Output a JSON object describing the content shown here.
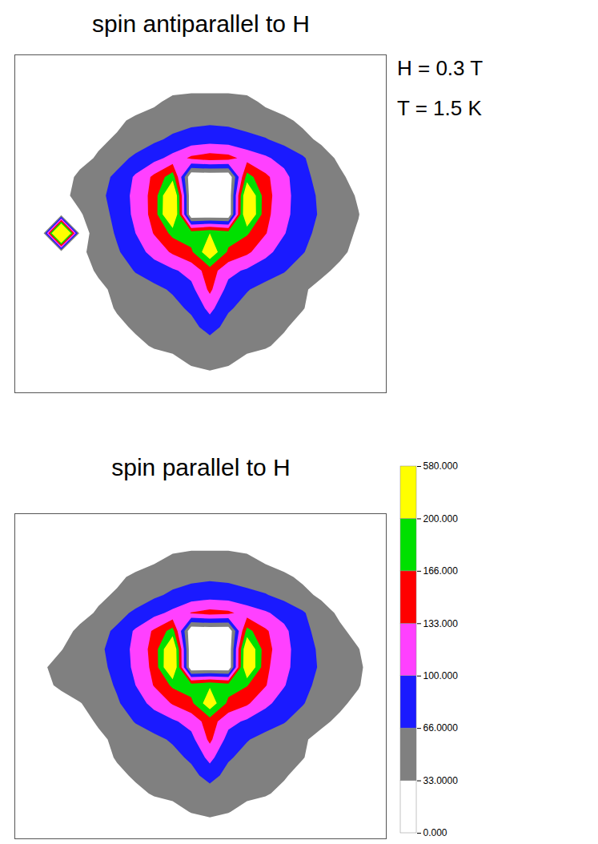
{
  "chart_data": [
    {
      "type": "contour",
      "title": "spin antiparallel to H",
      "annotations": [
        "H = 0.3 T",
        "T = 1.5 K"
      ],
      "tick_labels": false,
      "cells": [
        [
          10,
          10,
          10,
          10,
          10,
          10,
          10,
          10,
          10,
          12,
          12,
          12,
          10,
          10,
          10,
          10,
          10,
          10,
          10,
          10
        ],
        [
          10,
          10,
          10,
          10,
          10,
          10,
          12,
          15,
          20,
          22,
          22,
          22,
          20,
          15,
          12,
          10,
          10,
          10,
          10,
          10
        ],
        [
          10,
          10,
          10,
          10,
          12,
          15,
          20,
          28,
          40,
          42,
          42,
          42,
          40,
          28,
          20,
          15,
          12,
          10,
          10,
          10
        ],
        [
          10,
          10,
          12,
          15,
          22,
          28,
          38,
          45,
          52,
          58,
          60,
          58,
          52,
          45,
          38,
          28,
          22,
          15,
          12,
          10
        ],
        [
          10,
          12,
          15,
          22,
          28,
          36,
          48,
          60,
          72,
          80,
          85,
          82,
          75,
          68,
          55,
          40,
          28,
          20,
          14,
          10
        ],
        [
          10,
          14,
          18,
          25,
          36,
          55,
          72,
          90,
          110,
          140,
          150,
          145,
          120,
          105,
          88,
          70,
          45,
          28,
          18,
          12
        ],
        [
          10,
          15,
          22,
          38,
          55,
          72,
          105,
          140,
          185,
          0,
          0,
          0,
          180,
          140,
          110,
          75,
          55,
          38,
          22,
          12
        ],
        [
          10,
          16,
          25,
          42,
          58,
          78,
          110,
          145,
          260,
          0,
          0,
          0,
          250,
          145,
          112,
          80,
          60,
          45,
          30,
          14
        ],
        [
          12,
          16,
          18,
          30,
          50,
          76,
          108,
          145,
          265,
          0,
          0,
          0,
          255,
          142,
          110,
          80,
          62,
          45,
          34,
          15
        ],
        [
          10,
          12,
          400,
          20,
          45,
          70,
          100,
          135,
          175,
          185,
          200,
          185,
          170,
          135,
          102,
          76,
          56,
          42,
          30,
          14
        ],
        [
          10,
          12,
          15,
          28,
          42,
          62,
          85,
          112,
          138,
          160,
          230,
          160,
          140,
          110,
          85,
          68,
          50,
          38,
          26,
          12
        ],
        [
          10,
          12,
          14,
          24,
          36,
          50,
          68,
          82,
          95,
          112,
          150,
          110,
          95,
          80,
          68,
          52,
          38,
          28,
          18,
          10
        ],
        [
          10,
          10,
          12,
          18,
          28,
          38,
          50,
          58,
          70,
          90,
          140,
          88,
          68,
          56,
          48,
          36,
          26,
          18,
          12,
          10
        ],
        [
          10,
          10,
          10,
          15,
          24,
          35,
          44,
          50,
          56,
          72,
          110,
          70,
          55,
          48,
          42,
          34,
          24,
          15,
          10,
          10
        ],
        [
          10,
          10,
          10,
          12,
          18,
          28,
          36,
          42,
          46,
          55,
          80,
          54,
          46,
          40,
          35,
          26,
          18,
          12,
          10,
          10
        ],
        [
          10,
          10,
          10,
          10,
          14,
          20,
          28,
          35,
          38,
          42,
          48,
          42,
          38,
          35,
          28,
          20,
          14,
          10,
          10,
          10
        ],
        [
          10,
          10,
          10,
          10,
          10,
          12,
          16,
          22,
          26,
          34,
          38,
          34,
          26,
          22,
          16,
          12,
          10,
          10,
          10,
          10
        ],
        [
          10,
          10,
          10,
          10,
          10,
          10,
          12,
          14,
          16,
          20,
          22,
          20,
          16,
          14,
          12,
          10,
          10,
          10,
          10,
          10
        ]
      ]
    },
    {
      "type": "contour",
      "title": "spin parallel to H",
      "tick_labels": false,
      "cells": [
        [
          10,
          10,
          10,
          10,
          10,
          10,
          10,
          10,
          10,
          12,
          12,
          12,
          10,
          10,
          10,
          10,
          10,
          10,
          10,
          10
        ],
        [
          10,
          10,
          10,
          10,
          10,
          10,
          12,
          15,
          20,
          22,
          22,
          22,
          20,
          15,
          12,
          10,
          10,
          10,
          10,
          10
        ],
        [
          10,
          10,
          10,
          10,
          12,
          15,
          20,
          28,
          38,
          42,
          42,
          42,
          38,
          28,
          20,
          15,
          12,
          10,
          10,
          10
        ],
        [
          10,
          10,
          12,
          15,
          22,
          28,
          38,
          45,
          52,
          58,
          60,
          58,
          52,
          45,
          38,
          28,
          22,
          15,
          12,
          10
        ],
        [
          10,
          12,
          15,
          22,
          28,
          36,
          48,
          60,
          72,
          80,
          85,
          82,
          75,
          68,
          55,
          40,
          28,
          20,
          14,
          10
        ],
        [
          10,
          14,
          18,
          25,
          36,
          55,
          72,
          90,
          108,
          135,
          145,
          140,
          118,
          104,
          88,
          70,
          45,
          28,
          18,
          12
        ],
        [
          10,
          15,
          24,
          38,
          55,
          72,
          105,
          138,
          180,
          0,
          0,
          0,
          178,
          138,
          108,
          75,
          55,
          38,
          24,
          12
        ],
        [
          12,
          20,
          32,
          45,
          60,
          78,
          110,
          145,
          250,
          0,
          0,
          0,
          245,
          145,
          112,
          80,
          60,
          46,
          34,
          16
        ],
        [
          14,
          30,
          42,
          48,
          56,
          76,
          108,
          142,
          255,
          0,
          0,
          0,
          250,
          140,
          110,
          80,
          62,
          48,
          38,
          18
        ],
        [
          12,
          26,
          38,
          44,
          50,
          70,
          100,
          135,
          172,
          182,
          196,
          182,
          168,
          135,
          102,
          76,
          56,
          44,
          35,
          16
        ],
        [
          10,
          14,
          22,
          32,
          42,
          62,
          85,
          110,
          136,
          158,
          225,
          158,
          138,
          108,
          85,
          68,
          50,
          38,
          26,
          12
        ],
        [
          10,
          12,
          14,
          24,
          36,
          50,
          68,
          82,
          95,
          112,
          150,
          110,
          95,
          80,
          68,
          52,
          38,
          28,
          18,
          10
        ],
        [
          10,
          10,
          12,
          18,
          28,
          38,
          50,
          58,
          70,
          90,
          140,
          88,
          68,
          56,
          48,
          36,
          26,
          18,
          12,
          10
        ],
        [
          10,
          10,
          10,
          15,
          24,
          35,
          44,
          50,
          56,
          72,
          110,
          70,
          55,
          48,
          42,
          34,
          24,
          15,
          10,
          10
        ],
        [
          10,
          10,
          10,
          12,
          18,
          28,
          36,
          42,
          46,
          55,
          80,
          54,
          46,
          40,
          35,
          26,
          18,
          12,
          10,
          10
        ],
        [
          10,
          10,
          10,
          10,
          14,
          20,
          28,
          35,
          38,
          42,
          48,
          42,
          38,
          35,
          28,
          20,
          14,
          10,
          10,
          10
        ],
        [
          10,
          10,
          10,
          10,
          10,
          12,
          16,
          22,
          26,
          34,
          38,
          34,
          26,
          22,
          16,
          12,
          10,
          10,
          10,
          10
        ],
        [
          10,
          10,
          10,
          10,
          10,
          10,
          12,
          14,
          16,
          20,
          22,
          20,
          16,
          14,
          12,
          10,
          10,
          10,
          10,
          10
        ]
      ],
      "colorbar": {
        "levels": [
          0,
          33,
          66,
          100,
          133,
          166,
          200,
          580
        ],
        "colors": [
          "#ffffff",
          "#808080",
          "#1a1aff",
          "#ff40ff",
          "#ff0000",
          "#00e000",
          "#ffff00"
        ],
        "ticks": [
          {
            "value": 580,
            "label": "580.000"
          },
          {
            "value": 200,
            "label": "200.000"
          },
          {
            "value": 166,
            "label": "166.000"
          },
          {
            "value": 133,
            "label": "133.000"
          },
          {
            "value": 100,
            "label": "100.000"
          },
          {
            "value": 66,
            "label": "66.0000"
          },
          {
            "value": 33,
            "label": "33.0000"
          },
          {
            "value": 0,
            "label": "0.000"
          }
        ]
      }
    }
  ]
}
